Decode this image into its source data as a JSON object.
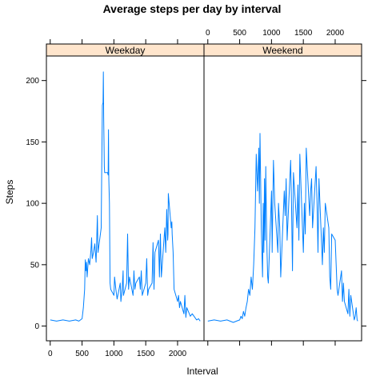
{
  "chart_data": {
    "type": "line",
    "title": "Average steps per day by interval",
    "xlabel": "Interval",
    "ylabel": "Steps",
    "xlim": [
      -60,
      2415
    ],
    "ylim": [
      -12,
      220
    ],
    "x_ticks": [
      0,
      500,
      1000,
      1500,
      2000
    ],
    "y_ticks": [
      0,
      50,
      100,
      150,
      200
    ],
    "layout": "side-by-side panels, shared y axis; x tick labels bottom-left and top-right",
    "grid": false,
    "line_color": "#0080ff",
    "strip_color": "#ffe5cc",
    "panels": [
      {
        "name": "Weekday",
        "x": [
          0,
          100,
          200,
          300,
          400,
          450,
          500,
          520,
          540,
          550,
          560,
          570,
          580,
          600,
          620,
          640,
          650,
          660,
          680,
          700,
          720,
          730,
          740,
          750,
          800,
          810,
          820,
          830,
          835,
          840,
          850,
          855,
          900,
          910,
          915,
          920,
          930,
          940,
          950,
          1000,
          1010,
          1030,
          1050,
          1100,
          1110,
          1130,
          1145,
          1150,
          1200,
          1215,
          1230,
          1245,
          1300,
          1315,
          1330,
          1345,
          1400,
          1415,
          1430,
          1445,
          1500,
          1515,
          1530,
          1545,
          1600,
          1615,
          1630,
          1645,
          1700,
          1715,
          1730,
          1745,
          1800,
          1815,
          1830,
          1845,
          1850,
          1855,
          1900,
          1910,
          1915,
          1930,
          1945,
          2000,
          2015,
          2030,
          2045,
          2100,
          2115,
          2130,
          2145,
          2200,
          2230,
          2300,
          2330,
          2355
        ],
        "y": [
          5,
          4,
          5,
          4,
          5,
          4,
          6,
          15,
          30,
          54,
          45,
          52,
          40,
          55,
          50,
          62,
          72,
          55,
          60,
          67,
          52,
          70,
          90,
          60,
          80,
          130,
          180,
          182,
          207,
          170,
          130,
          125,
          125,
          123,
          160,
          120,
          100,
          35,
          30,
          25,
          40,
          30,
          22,
          35,
          20,
          30,
          45,
          25,
          35,
          75,
          30,
          40,
          25,
          45,
          30,
          35,
          40,
          30,
          45,
          25,
          35,
          55,
          25,
          30,
          35,
          68,
          30,
          60,
          70,
          40,
          75,
          40,
          80,
          60,
          95,
          70,
          75,
          108,
          80,
          85,
          75,
          60,
          30,
          20,
          25,
          15,
          20,
          10,
          25,
          7,
          15,
          8,
          10,
          5,
          6,
          4
        ]
      },
      {
        "name": "Weekend",
        "x": [
          0,
          100,
          200,
          300,
          400,
          450,
          500,
          520,
          540,
          560,
          580,
          600,
          620,
          640,
          660,
          680,
          700,
          720,
          740,
          760,
          780,
          800,
          810,
          820,
          830,
          840,
          850,
          860,
          870,
          880,
          890,
          900,
          910,
          920,
          930,
          940,
          950,
          1000,
          1010,
          1030,
          1050,
          1100,
          1110,
          1130,
          1145,
          1200,
          1215,
          1230,
          1245,
          1300,
          1315,
          1330,
          1345,
          1400,
          1415,
          1430,
          1445,
          1500,
          1515,
          1530,
          1545,
          1600,
          1615,
          1630,
          1645,
          1700,
          1715,
          1730,
          1745,
          1800,
          1815,
          1830,
          1845,
          1900,
          1915,
          1930,
          1945,
          2000,
          2015,
          2030,
          2045,
          2100,
          2115,
          2130,
          2145,
          2200,
          2215,
          2230,
          2245,
          2300,
          2315,
          2330,
          2345,
          2355
        ],
        "y": [
          4,
          5,
          4,
          5,
          3,
          4,
          5,
          8,
          6,
          12,
          8,
          15,
          20,
          30,
          25,
          40,
          30,
          50,
          80,
          140,
          110,
          145,
          100,
          157,
          120,
          80,
          60,
          40,
          100,
          60,
          120,
          70,
          130,
          90,
          60,
          40,
          35,
          110,
          60,
          135,
          100,
          60,
          100,
          80,
          40,
          110,
          90,
          120,
          70,
          135,
          100,
          45,
          125,
          80,
          115,
          70,
          140,
          60,
          100,
          75,
          145,
          90,
          110,
          120,
          80,
          130,
          100,
          60,
          120,
          50,
          80,
          60,
          100,
          80,
          40,
          30,
          75,
          70,
          50,
          30,
          25,
          45,
          20,
          35,
          20,
          10,
          30,
          8,
          25,
          5,
          8,
          15,
          5,
          4
        ]
      }
    ]
  }
}
